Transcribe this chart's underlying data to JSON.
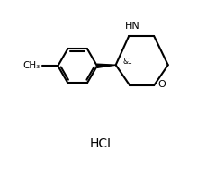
{
  "background_color": "#ffffff",
  "line_color": "#000000",
  "text_color": "#000000",
  "line_width": 1.5,
  "font_size": 7.5,
  "hcl_font_size": 10,
  "stereo_label": "&1",
  "o_label": "O",
  "nh_label": "HN",
  "hcl_label": "HCl",
  "figsize": [
    2.2,
    1.88
  ],
  "dpi": 100,
  "xlim": [
    0,
    10
  ],
  "ylim": [
    0,
    9
  ]
}
